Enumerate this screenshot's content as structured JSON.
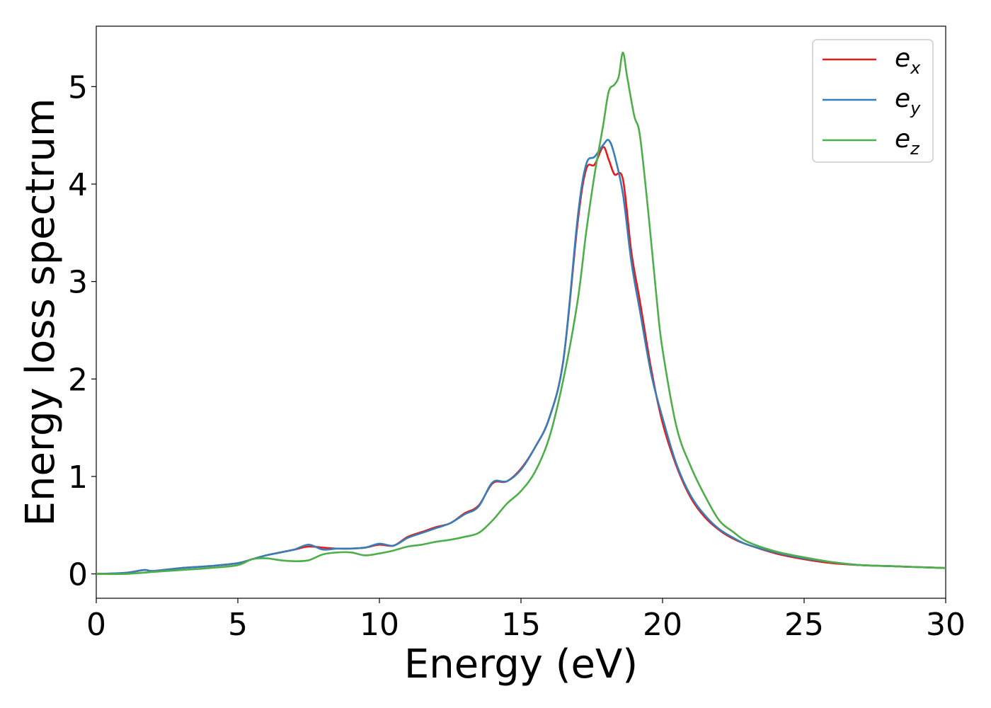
{
  "chart_data": {
    "type": "line",
    "title": "",
    "xlabel": "Energy (eV)",
    "ylabel": "Energy loss spectrum",
    "xlim": [
      0,
      30
    ],
    "ylim": [
      -0.25,
      5.62
    ],
    "xticks": [
      0,
      5,
      10,
      15,
      20,
      25,
      30
    ],
    "yticks": [
      0,
      1,
      2,
      3,
      4,
      5
    ],
    "xtick_labels": [
      "0",
      "5",
      "10",
      "15",
      "20",
      "25",
      "30"
    ],
    "ytick_labels": [
      "0",
      "1",
      "2",
      "3",
      "4",
      "5"
    ],
    "grid": false,
    "legend_position": "top-right",
    "series": [
      {
        "name": "e_x",
        "legend_main": "e",
        "legend_sub": "x",
        "color": "#e41a1c",
        "x": [
          0,
          1,
          1.7,
          2,
          3,
          4,
          5,
          5.5,
          6,
          6.5,
          7,
          7.5,
          8,
          8.5,
          9,
          9.5,
          10,
          10.5,
          11,
          11.5,
          12,
          12.5,
          13,
          13.5,
          14,
          14.5,
          15,
          15.5,
          16,
          16.5,
          17,
          17.3,
          17.6,
          17.9,
          18.1,
          18.3,
          18.6,
          18.9,
          19.2,
          19.6,
          20,
          20.5,
          21,
          21.5,
          22,
          22.5,
          23,
          24,
          25,
          26,
          27,
          28,
          29,
          30
        ],
        "y": [
          0,
          0.01,
          0.04,
          0.03,
          0.06,
          0.08,
          0.11,
          0.15,
          0.19,
          0.22,
          0.25,
          0.28,
          0.27,
          0.26,
          0.26,
          0.27,
          0.3,
          0.29,
          0.38,
          0.43,
          0.48,
          0.52,
          0.62,
          0.7,
          0.93,
          0.95,
          1.08,
          1.3,
          1.6,
          2.2,
          3.6,
          4.15,
          4.2,
          4.38,
          4.25,
          4.1,
          4.05,
          3.3,
          2.8,
          2.1,
          1.55,
          1.1,
          0.78,
          0.58,
          0.45,
          0.36,
          0.3,
          0.21,
          0.15,
          0.11,
          0.09,
          0.08,
          0.07,
          0.06
        ]
      },
      {
        "name": "e_y",
        "legend_main": "e",
        "legend_sub": "y",
        "color": "#377eb8",
        "x": [
          0,
          1,
          1.7,
          2,
          3,
          4,
          5,
          5.5,
          6,
          6.5,
          7,
          7.5,
          8,
          8.5,
          9,
          9.5,
          10,
          10.5,
          11,
          11.5,
          12,
          12.5,
          13,
          13.5,
          14,
          14.5,
          15,
          15.5,
          16,
          16.5,
          17,
          17.3,
          17.6,
          17.9,
          18.1,
          18.3,
          18.6,
          18.9,
          19.2,
          19.6,
          20,
          20.5,
          21,
          21.5,
          22,
          22.5,
          23,
          24,
          25,
          26,
          27,
          28,
          29,
          30
        ],
        "y": [
          0,
          0.01,
          0.04,
          0.03,
          0.06,
          0.08,
          0.11,
          0.15,
          0.19,
          0.22,
          0.25,
          0.3,
          0.25,
          0.26,
          0.26,
          0.27,
          0.31,
          0.29,
          0.37,
          0.42,
          0.47,
          0.52,
          0.61,
          0.69,
          0.94,
          0.95,
          1.07,
          1.3,
          1.6,
          2.2,
          3.65,
          4.2,
          4.28,
          4.4,
          4.45,
          4.3,
          3.9,
          3.2,
          2.7,
          2.05,
          1.6,
          1.12,
          0.8,
          0.6,
          0.46,
          0.37,
          0.3,
          0.22,
          0.16,
          0.12,
          0.09,
          0.08,
          0.07,
          0.06
        ]
      },
      {
        "name": "e_z",
        "legend_main": "e",
        "legend_sub": "z",
        "color": "#4daf4a",
        "x": [
          0,
          1,
          2,
          3,
          4,
          5,
          5.5,
          6,
          6.5,
          7,
          7.5,
          8,
          8.5,
          9,
          9.5,
          10,
          10.5,
          11,
          11.5,
          12,
          12.5,
          13,
          13.5,
          14,
          14.5,
          15,
          15.5,
          16,
          16.5,
          17,
          17.3,
          17.6,
          17.9,
          18.1,
          18.3,
          18.45,
          18.6,
          18.75,
          19,
          19.2,
          19.5,
          19.8,
          20,
          20.5,
          21,
          21.5,
          22,
          22.5,
          23,
          24,
          25,
          26,
          27,
          28,
          29,
          30
        ],
        "y": [
          0,
          0.0,
          0.02,
          0.04,
          0.06,
          0.09,
          0.15,
          0.16,
          0.14,
          0.13,
          0.14,
          0.2,
          0.22,
          0.22,
          0.19,
          0.21,
          0.24,
          0.28,
          0.3,
          0.33,
          0.35,
          0.38,
          0.42,
          0.55,
          0.72,
          0.85,
          1.05,
          1.4,
          2.0,
          2.8,
          3.5,
          4.1,
          4.6,
          4.95,
          5.02,
          5.1,
          5.35,
          5.1,
          4.7,
          4.5,
          3.7,
          2.8,
          2.3,
          1.5,
          1.1,
          0.8,
          0.55,
          0.43,
          0.33,
          0.23,
          0.17,
          0.12,
          0.09,
          0.08,
          0.07,
          0.06
        ]
      }
    ]
  }
}
